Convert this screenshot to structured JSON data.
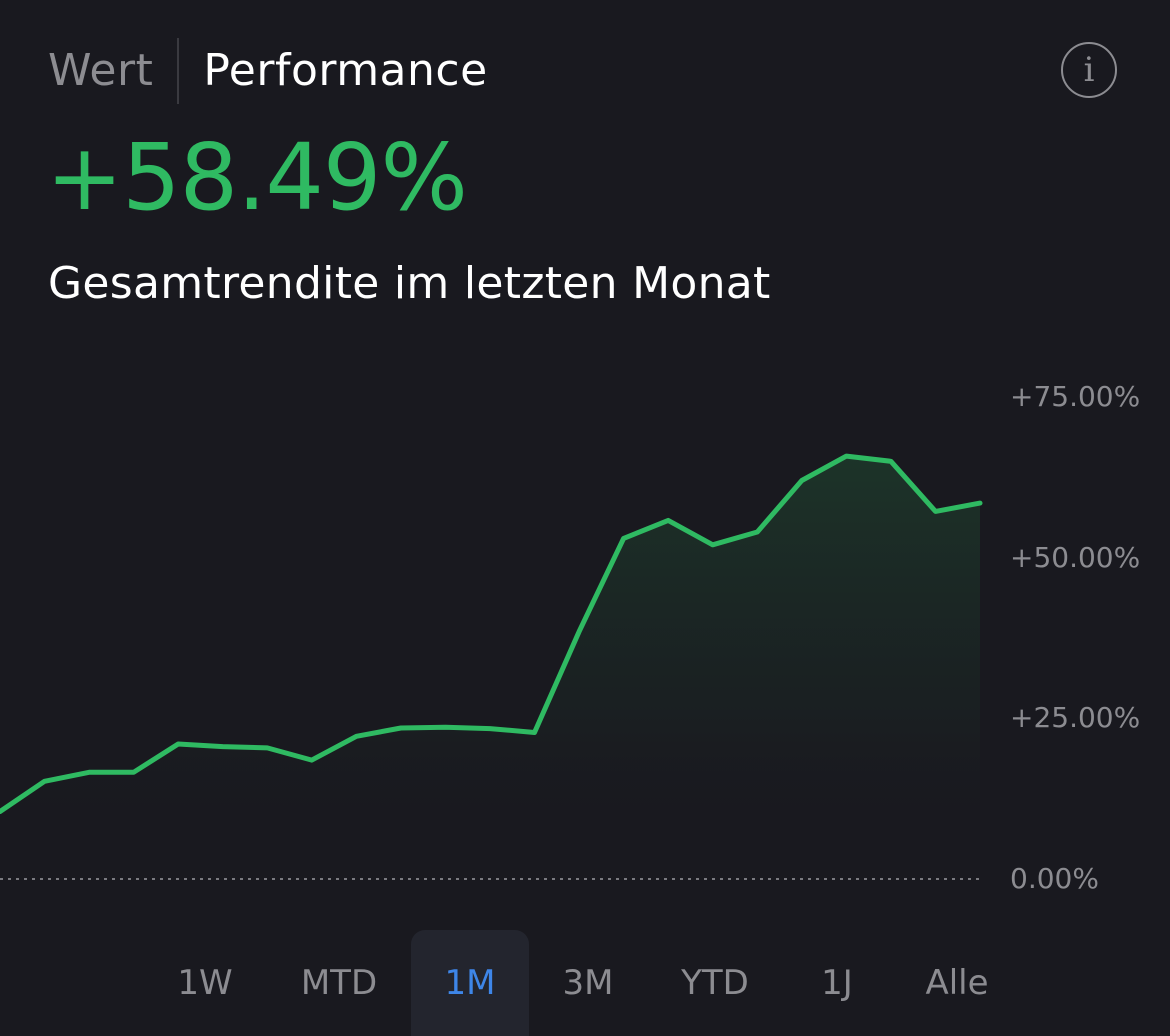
{
  "tabs": [
    {
      "label": "Wert",
      "active": false
    },
    {
      "label": "Performance",
      "active": true
    }
  ],
  "info_icon": {
    "icon": "info-icon",
    "glyph": "i"
  },
  "summary": {
    "total_return": "+58.49%",
    "caption": "Gesamtrendite im letzten Monat"
  },
  "colors": {
    "positive": "#2fba62",
    "selected_range": "#3e86e8",
    "background": "#19191f"
  },
  "chart_data": {
    "type": "area",
    "title": "",
    "xlabel": "",
    "ylabel": "",
    "ylim": [
      0,
      75
    ],
    "y_ticks": [
      {
        "value": 75,
        "label": "+75.00%"
      },
      {
        "value": 50,
        "label": "+50.00%"
      },
      {
        "value": 25,
        "label": "+25.00%"
      },
      {
        "value": 0,
        "label": "0.00%"
      }
    ],
    "baseline": 0,
    "grid": false,
    "legend": "none",
    "series": [
      {
        "values": [
          10.5,
          15.2,
          16.6,
          16.6,
          21.0,
          20.6,
          20.4,
          18.5,
          22.2,
          23.5,
          23.6,
          23.4,
          22.8,
          38.5,
          53.0,
          55.8,
          52.0,
          54.0,
          62.0,
          65.8,
          65.0,
          57.2,
          58.49
        ]
      }
    ]
  },
  "range_selector": {
    "options": [
      "1W",
      "MTD",
      "1M",
      "3M",
      "YTD",
      "1J",
      "Alle"
    ],
    "selected": "1M"
  }
}
